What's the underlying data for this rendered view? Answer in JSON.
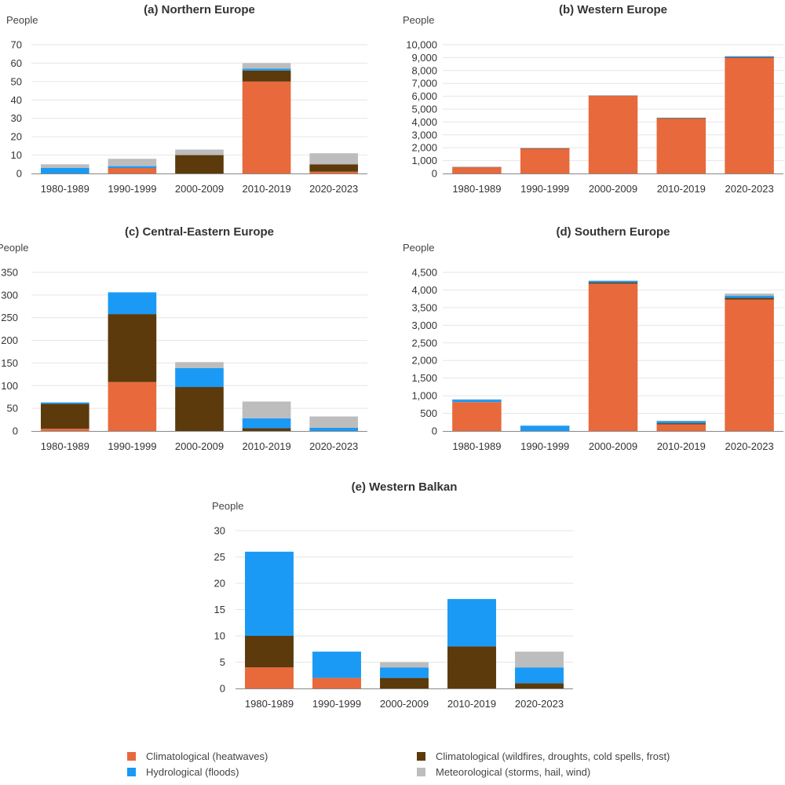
{
  "legend": [
    {
      "name": "Climatological (heatwaves)",
      "color": "#e8693b"
    },
    {
      "name": "Climatological (wildfires, droughts, cold spells, frost)",
      "color": "#5c3a0c"
    },
    {
      "name": "Hydrological (floods)",
      "color": "#1a9af5"
    },
    {
      "name": "Meteorological (storms, hail, wind)",
      "color": "#bdbdbd"
    }
  ],
  "chart_data": [
    {
      "type": "bar",
      "stacked": true,
      "title": "(a) Northern Europe",
      "ylabel": "People",
      "categories": [
        "1980-1989",
        "1990-1999",
        "2000-2009",
        "2010-2019",
        "2020-2023"
      ],
      "ylim": [
        0,
        70
      ],
      "yticks": [
        0,
        10,
        20,
        30,
        40,
        50,
        60,
        70
      ],
      "ytick_labels": [
        "0",
        "10",
        "20",
        "30",
        "40",
        "50",
        "60",
        "70"
      ],
      "series": [
        {
          "name": "Climatological (heatwaves)",
          "values": [
            0,
            3,
            0,
            50,
            1
          ]
        },
        {
          "name": "Climatological (wildfires, droughts, cold spells, frost)",
          "values": [
            0,
            0,
            10,
            6,
            4
          ]
        },
        {
          "name": "Hydrological (floods)",
          "values": [
            3,
            1,
            0,
            1,
            0
          ]
        },
        {
          "name": "Meteorological (storms, hail, wind)",
          "values": [
            2,
            4,
            3,
            3,
            6
          ]
        }
      ]
    },
    {
      "type": "bar",
      "stacked": true,
      "title": "(b) Western Europe",
      "ylabel": "People",
      "categories": [
        "1980-1989",
        "1990-1999",
        "2000-2009",
        "2010-2019",
        "2020-2023"
      ],
      "ylim": [
        0,
        10000
      ],
      "yticks": [
        0,
        1000,
        2000,
        3000,
        4000,
        5000,
        6000,
        7000,
        8000,
        9000,
        10000
      ],
      "ytick_labels": [
        "0",
        "1,000",
        "2,000",
        "3,000",
        "4,000",
        "5,000",
        "6,000",
        "7,000",
        "8,000",
        "9,000",
        "10,000"
      ],
      "series": [
        {
          "name": "Climatological (heatwaves)",
          "values": [
            500,
            1950,
            6050,
            4250,
            9000
          ]
        },
        {
          "name": "Climatological (wildfires, droughts, cold spells, frost)",
          "values": [
            0,
            10,
            0,
            60,
            20
          ]
        },
        {
          "name": "Hydrological (floods)",
          "values": [
            20,
            20,
            20,
            20,
            80
          ]
        },
        {
          "name": "Meteorological (storms, hail, wind)",
          "values": [
            10,
            10,
            10,
            10,
            30
          ]
        }
      ]
    },
    {
      "type": "bar",
      "stacked": true,
      "title": "(c) Central-Eastern Europe",
      "ylabel": "People",
      "categories": [
        "1980-1989",
        "1990-1999",
        "2000-2009",
        "2010-2019",
        "2020-2023"
      ],
      "ylim": [
        0,
        350
      ],
      "yticks": [
        0,
        50,
        100,
        150,
        200,
        250,
        300,
        350
      ],
      "ytick_labels": [
        "0",
        "50",
        "100",
        "150",
        "200",
        "250",
        "300",
        "350"
      ],
      "series": [
        {
          "name": "Climatological (heatwaves)",
          "values": [
            5,
            108,
            0,
            0,
            0
          ]
        },
        {
          "name": "Climatological (wildfires, droughts, cold spells, frost)",
          "values": [
            55,
            150,
            97,
            6,
            0
          ]
        },
        {
          "name": "Hydrological (floods)",
          "values": [
            3,
            48,
            42,
            22,
            7
          ]
        },
        {
          "name": "Meteorological (storms, hail, wind)",
          "values": [
            0,
            0,
            13,
            37,
            25
          ]
        }
      ]
    },
    {
      "type": "bar",
      "stacked": true,
      "title": "(d) Southern Europe",
      "ylabel": "People",
      "categories": [
        "1980-1989",
        "1990-1999",
        "2000-2009",
        "2010-2019",
        "2020-2023"
      ],
      "ylim": [
        0,
        4500
      ],
      "yticks": [
        0,
        500,
        1000,
        1500,
        2000,
        2500,
        3000,
        3500,
        4000,
        4500
      ],
      "ytick_labels": [
        "0",
        "500",
        "1,000",
        "1,500",
        "2,000",
        "2,500",
        "3,000",
        "3,500",
        "4,000",
        "4,500"
      ],
      "series": [
        {
          "name": "Climatological (heatwaves)",
          "values": [
            820,
            0,
            4180,
            190,
            3730
          ]
        },
        {
          "name": "Climatological (wildfires, droughts, cold spells, frost)",
          "values": [
            0,
            0,
            30,
            30,
            50
          ]
        },
        {
          "name": "Hydrological (floods)",
          "values": [
            70,
            150,
            50,
            60,
            60
          ]
        },
        {
          "name": "Meteorological (storms, hail, wind)",
          "values": [
            10,
            0,
            10,
            10,
            60
          ]
        }
      ]
    },
    {
      "type": "bar",
      "stacked": true,
      "title": "(e) Western Balkan",
      "ylabel": "People",
      "categories": [
        "1980-1989",
        "1990-1999",
        "2000-2009",
        "2010-2019",
        "2020-2023"
      ],
      "ylim": [
        0,
        30
      ],
      "yticks": [
        0,
        5,
        10,
        15,
        20,
        25,
        30
      ],
      "ytick_labels": [
        "0",
        "5",
        "10",
        "15",
        "20",
        "25",
        "30"
      ],
      "series": [
        {
          "name": "Climatological (heatwaves)",
          "values": [
            4,
            2,
            0,
            0,
            0
          ]
        },
        {
          "name": "Climatological (wildfires, droughts, cold spells, frost)",
          "values": [
            6,
            0,
            2,
            8,
            1
          ]
        },
        {
          "name": "Hydrological (floods)",
          "values": [
            16,
            5,
            2,
            9,
            3
          ]
        },
        {
          "name": "Meteorological (storms, hail, wind)",
          "values": [
            0,
            0,
            1,
            0,
            3
          ]
        }
      ]
    }
  ]
}
